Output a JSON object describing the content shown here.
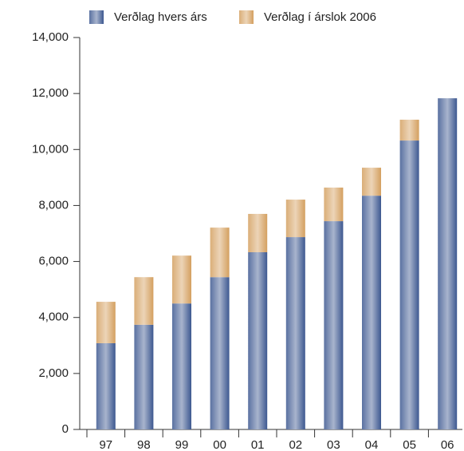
{
  "chart_data": {
    "type": "stacked_bar",
    "categories": [
      "97",
      "98",
      "99",
      "00",
      "01",
      "02",
      "03",
      "04",
      "05",
      "06"
    ],
    "series": [
      {
        "name": "Verðlag hvers árs",
        "color": "#3d5890",
        "values": [
          3080,
          3740,
          4500,
          5440,
          6330,
          6870,
          7440,
          8350,
          10320,
          11830
        ]
      },
      {
        "name": "Verðlag í árslok 2006",
        "color": "#d4a060",
        "values": [
          1480,
          1700,
          1710,
          1770,
          1370,
          1340,
          1200,
          1000,
          745,
          0
        ]
      }
    ],
    "ylim": [
      0,
      14000
    ],
    "yticks": [
      0,
      {
        "value": 2000,
        "label": "2,000"
      },
      {
        "value": 4000,
        "label": "4,000"
      },
      {
        "value": 6000,
        "label": "6,000"
      },
      {
        "value": 8000,
        "label": "8,000"
      },
      {
        "value": 10000,
        "label": "10,000"
      },
      {
        "value": 12000,
        "label": "12,000"
      },
      {
        "value": 14000,
        "label": "14,000"
      }
    ]
  }
}
